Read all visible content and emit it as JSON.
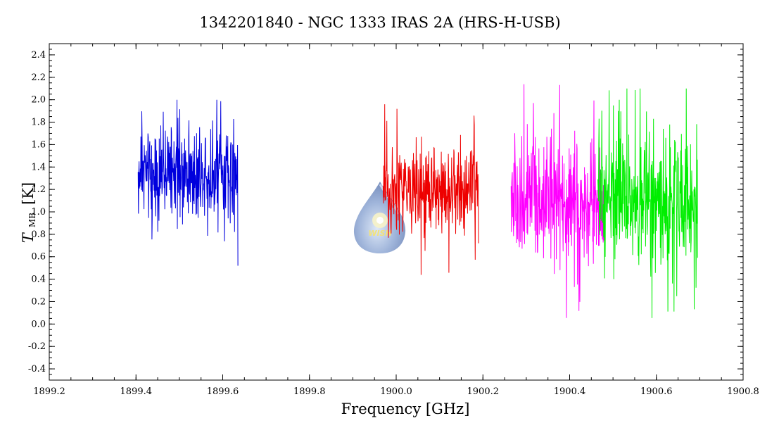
{
  "chart_data": {
    "type": "line",
    "title": "1342201840 - NGC 1333 IRAS 2A (HRS-H-USB)",
    "xlabel": "Frequency [GHz]",
    "ylabel_main": "T",
    "ylabel_sub": "MB",
    "ylabel_unit": "[K]",
    "xlim": [
      1899.2,
      1900.8
    ],
    "ylim": [
      -0.5,
      2.5
    ],
    "x_ticks": [
      "1899.2",
      "1899.4",
      "1899.6",
      "1899.8",
      "1900.0",
      "1900.2",
      "1900.4",
      "1900.6",
      "1900.8"
    ],
    "y_ticks": [
      "-0.4",
      "-0.2",
      "0.0",
      "0.2",
      "0.4",
      "0.6",
      "0.8",
      "1.0",
      "1.2",
      "1.4",
      "1.6",
      "1.8",
      "2.0",
      "2.2",
      "2.4"
    ],
    "grid": false,
    "logo": {
      "text": "WISH"
    },
    "series": [
      {
        "color": "#0000dd",
        "x_range": [
          1899.405,
          1899.635
        ],
        "mean": 1.35,
        "spread": 0.3,
        "min": 0.44,
        "max": 2.0,
        "end_value": 0.52
      },
      {
        "color": "#ee0000",
        "x_range": [
          1899.97,
          1900.19
        ],
        "mean": 1.18,
        "spread": 0.3,
        "min": 0.21,
        "max": 1.97,
        "end_value": 0.72
      },
      {
        "color": "#ff00ff",
        "x_range": [
          1900.265,
          1900.48
        ],
        "mean": 1.1,
        "spread": 0.42,
        "min": -0.2,
        "max": 2.36,
        "end_value": 1.3
      },
      {
        "color": "#00ee00",
        "x_range": [
          1900.465,
          1900.695
        ],
        "mean": 1.1,
        "spread": 0.42,
        "min": -0.16,
        "max": 2.1,
        "end_value": 0.59
      }
    ]
  }
}
